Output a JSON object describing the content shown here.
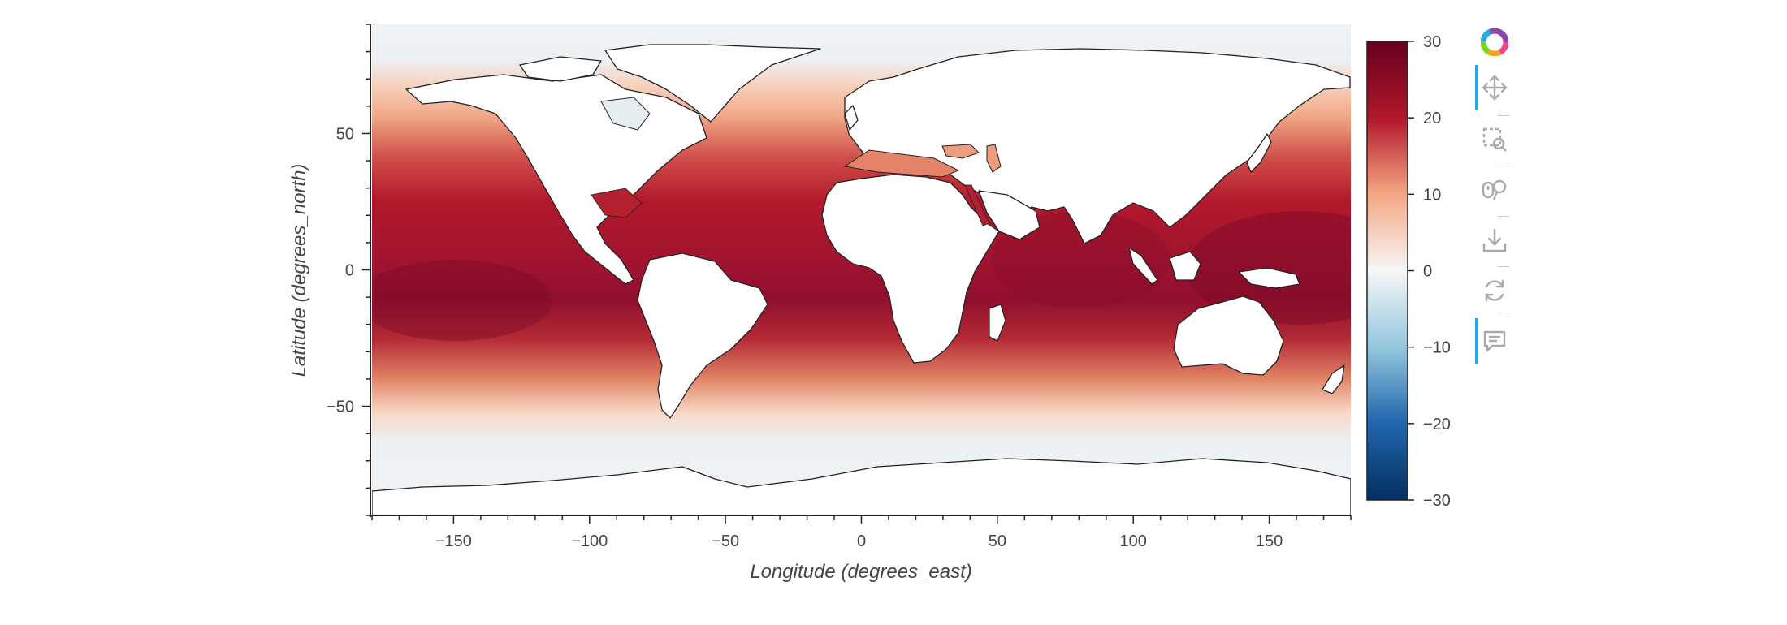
{
  "map": {
    "xlabel": "Longitude (degrees_east)",
    "ylabel": "Latitude (degrees_north)",
    "x_ticks": [
      -150,
      -100,
      -50,
      0,
      50,
      100,
      150
    ],
    "y_ticks": [
      -50,
      0,
      50
    ],
    "x_range": [
      -180,
      180
    ],
    "y_range": [
      -90,
      90
    ],
    "colormap": "RdBu_r",
    "colorbar": {
      "range": [
        -30,
        30
      ],
      "ticks": [
        30,
        20,
        10,
        0,
        -10,
        -20,
        -30
      ]
    },
    "colors": {
      "deep_red": "#67001f",
      "red": "#b2182b",
      "salmon": "#f4a582",
      "white": "#f7f7f7",
      "light_blue": "#92c5de",
      "blue": "#2166ac",
      "navy": "#053061"
    }
  },
  "toolbar": {
    "tools": [
      {
        "name": "bokeh-logo-icon",
        "active": false
      },
      {
        "name": "pan-icon",
        "active": true
      },
      {
        "name": "box-zoom-icon",
        "active": false
      },
      {
        "name": "wheel-zoom-icon",
        "active": false
      },
      {
        "name": "save-icon",
        "active": false
      },
      {
        "name": "reset-icon",
        "active": false
      },
      {
        "name": "hover-icon",
        "active": true
      }
    ]
  }
}
